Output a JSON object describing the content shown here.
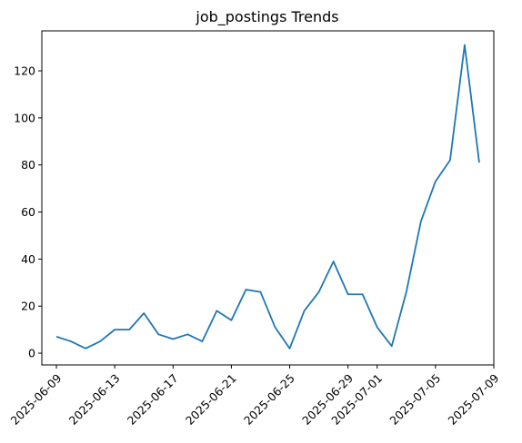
{
  "chart_data": {
    "type": "line",
    "title": "job_postings Trends",
    "xlabel": "",
    "ylabel": "",
    "x_axis_type": "date",
    "x": [
      "2025-06-09",
      "2025-06-10",
      "2025-06-11",
      "2025-06-12",
      "2025-06-13",
      "2025-06-14",
      "2025-06-15",
      "2025-06-16",
      "2025-06-17",
      "2025-06-18",
      "2025-06-19",
      "2025-06-20",
      "2025-06-21",
      "2025-06-22",
      "2025-06-23",
      "2025-06-24",
      "2025-06-25",
      "2025-06-26",
      "2025-06-27",
      "2025-06-28",
      "2025-06-29",
      "2025-06-30",
      "2025-07-01",
      "2025-07-02",
      "2025-07-03",
      "2025-07-04",
      "2025-07-05",
      "2025-07-06",
      "2025-07-07",
      "2025-07-08"
    ],
    "series": [
      {
        "color": "#1f77b4",
        "values": [
          7,
          5,
          2,
          5,
          10,
          10,
          17,
          8,
          6,
          8,
          5,
          18,
          14,
          27,
          26,
          11,
          2,
          18,
          26,
          39,
          25,
          25,
          11,
          3,
          26,
          56,
          73,
          82,
          131,
          81
        ]
      }
    ],
    "xlim": [
      "2025-06-08",
      "2025-07-09"
    ],
    "ylim": [
      -5,
      137
    ],
    "x_ticks": [
      "2025-06-09",
      "2025-06-13",
      "2025-06-17",
      "2025-06-21",
      "2025-06-25",
      "2025-06-29",
      "2025-07-01",
      "2025-07-05",
      "2025-07-09"
    ],
    "y_ticks": [
      0,
      20,
      40,
      60,
      80,
      100,
      120
    ],
    "grid": false,
    "legend": "none"
  }
}
